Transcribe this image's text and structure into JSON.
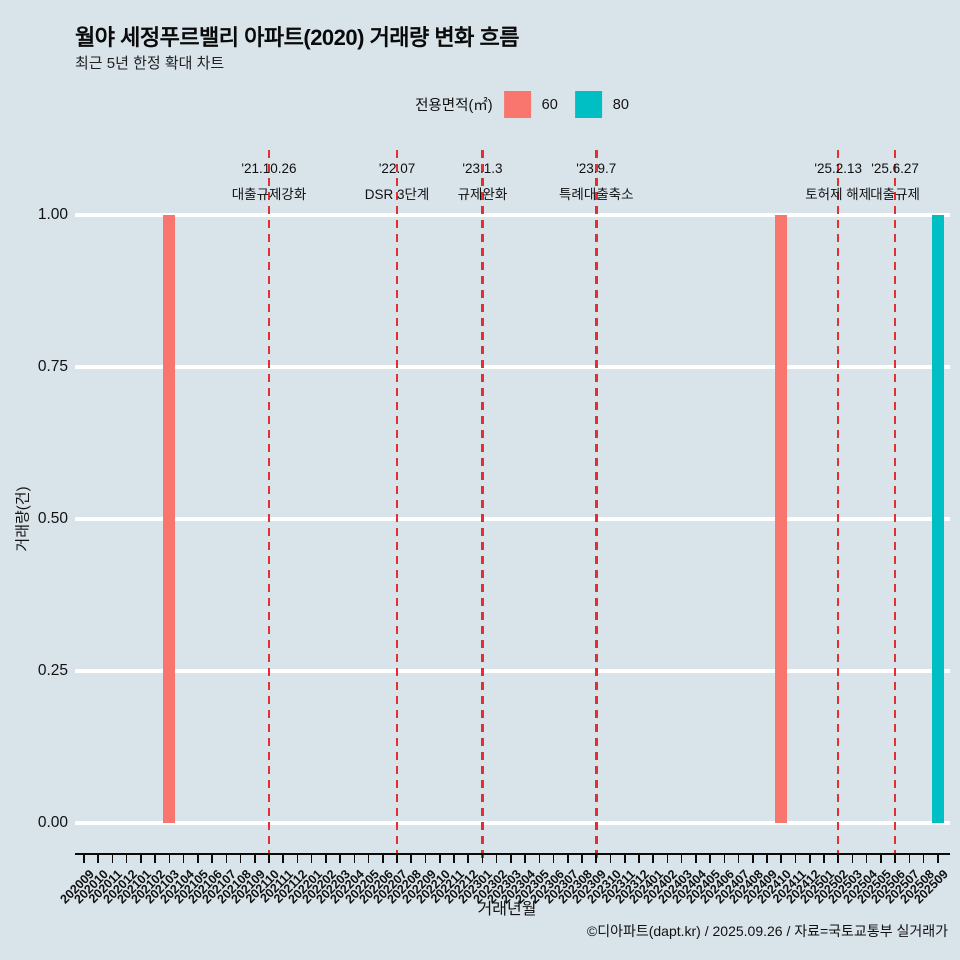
{
  "title": "월야 세정푸르밸리 아파트(2020) 거래량 변화 흐름",
  "subtitle": "최근 5년 한정 확대 차트",
  "legend": {
    "title": "전용면적(㎡)",
    "items": [
      {
        "label": "60",
        "color": "#F8766D"
      },
      {
        "label": "80",
        "color": "#00BFC4"
      }
    ]
  },
  "footer": "©디아파트(dapt.kr) / 2025.09.26 / 자료=국토교통부 실거래가",
  "chart_data": {
    "type": "bar",
    "title": "월야 세정푸르밸리 아파트(2020) 거래량 변화 흐름",
    "subtitle": "최근 5년 한정 확대 차트",
    "xlabel": "거래년월",
    "ylabel": "거래량(건)",
    "ylim": [
      0,
      1
    ],
    "y_ticks": [
      {
        "value": 0.0,
        "label": "0.00"
      },
      {
        "value": 0.25,
        "label": "0.25"
      },
      {
        "value": 0.5,
        "label": "0.50"
      },
      {
        "value": 0.75,
        "label": "0.75"
      },
      {
        "value": 1.0,
        "label": "1.00"
      }
    ],
    "grid": true,
    "legend_position": "top",
    "categories": [
      "202009",
      "202010",
      "202011",
      "202012",
      "202101",
      "202102",
      "202103",
      "202104",
      "202105",
      "202106",
      "202107",
      "202108",
      "202109",
      "202110",
      "202111",
      "202112",
      "202201",
      "202202",
      "202203",
      "202204",
      "202205",
      "202206",
      "202207",
      "202208",
      "202209",
      "202210",
      "202211",
      "202212",
      "202301",
      "202302",
      "202303",
      "202304",
      "202305",
      "202306",
      "202307",
      "202308",
      "202309",
      "202310",
      "202311",
      "202312",
      "202401",
      "202402",
      "202403",
      "202404",
      "202405",
      "202406",
      "202407",
      "202408",
      "202409",
      "202410",
      "202411",
      "202412",
      "202501",
      "202502",
      "202503",
      "202504",
      "202505",
      "202506",
      "202507",
      "202508",
      "202509"
    ],
    "series": [
      {
        "name": "60",
        "color": "#F8766D",
        "points": [
          {
            "category": "202103",
            "value": 1
          },
          {
            "category": "202410",
            "value": 1
          }
        ]
      },
      {
        "name": "80",
        "color": "#00BFC4",
        "points": [
          {
            "category": "202509",
            "value": 1
          }
        ]
      }
    ],
    "events": [
      {
        "date": "'21.10.26",
        "label": "대출규제강화",
        "month": "202110"
      },
      {
        "date": "'22.07",
        "label": "DSR 3단계",
        "month": "202207"
      },
      {
        "date": "'23.1.3",
        "label": "규제완화",
        "month": "202301"
      },
      {
        "date": "'23.9.7",
        "label": "특례대출축소",
        "month": "202309"
      },
      {
        "date": "'25.2.13",
        "label": "토허제 해제",
        "month": "202502"
      },
      {
        "date": "'25.6.27",
        "label": "대출규제",
        "month": "202506"
      }
    ],
    "event_line_color": "#e0312e",
    "background_color": "#d9e3ea",
    "gridline_color": "#ffffff"
  }
}
